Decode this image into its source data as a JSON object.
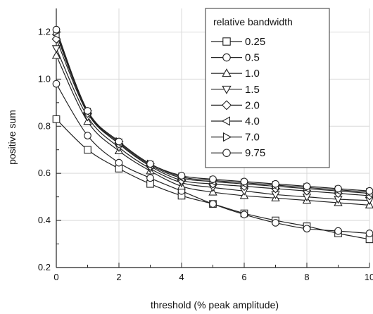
{
  "chart_data": {
    "type": "line",
    "xlabel": "threshold (% peak amplitude)",
    "ylabel": "positive sum",
    "xlim": [
      0,
      10
    ],
    "ylim": [
      0.2,
      1.3
    ],
    "x_ticks": [
      "0",
      "2",
      "4",
      "6",
      "8",
      "10"
    ],
    "y_ticks": [
      "0.2",
      "0.4",
      "0.6",
      "0.8",
      "1.0",
      "1.2"
    ],
    "grid": true,
    "legend": {
      "title": "relative bandwidth",
      "position": "top-right"
    },
    "x": [
      0,
      1,
      2,
      3,
      4,
      5,
      6,
      7,
      8,
      9,
      10
    ],
    "series": [
      {
        "name": "0.25",
        "marker": "square",
        "values": [
          0.83,
          0.7,
          0.62,
          0.555,
          0.505,
          0.47,
          0.43,
          0.4,
          0.375,
          0.345,
          0.32
        ]
      },
      {
        "name": "0.5",
        "marker": "circle",
        "values": [
          0.98,
          0.76,
          0.645,
          0.58,
          0.525,
          0.47,
          0.425,
          0.39,
          0.365,
          0.355,
          0.345
        ]
      },
      {
        "name": "1.0",
        "marker": "triangle-up",
        "values": [
          1.1,
          0.82,
          0.695,
          0.61,
          0.545,
          0.52,
          0.505,
          0.495,
          0.485,
          0.475,
          0.465
        ]
      },
      {
        "name": "1.5",
        "marker": "triangle-down",
        "values": [
          1.13,
          0.84,
          0.71,
          0.62,
          0.56,
          0.54,
          0.525,
          0.51,
          0.5,
          0.49,
          0.485
        ]
      },
      {
        "name": "2.0",
        "marker": "diamond",
        "values": [
          1.17,
          0.855,
          0.725,
          0.63,
          0.57,
          0.555,
          0.545,
          0.535,
          0.525,
          0.515,
          0.505
        ]
      },
      {
        "name": "4.0",
        "marker": "triangle-left",
        "values": [
          1.19,
          0.86,
          0.73,
          0.635,
          0.58,
          0.565,
          0.555,
          0.545,
          0.535,
          0.525,
          0.515
        ]
      },
      {
        "name": "7.0",
        "marker": "triangle-right",
        "values": [
          1.2,
          0.865,
          0.735,
          0.64,
          0.585,
          0.57,
          0.56,
          0.55,
          0.54,
          0.53,
          0.52
        ]
      },
      {
        "name": "9.75",
        "marker": "circle",
        "values": [
          1.21,
          0.865,
          0.735,
          0.64,
          0.59,
          0.575,
          0.565,
          0.555,
          0.545,
          0.535,
          0.525
        ]
      }
    ]
  }
}
